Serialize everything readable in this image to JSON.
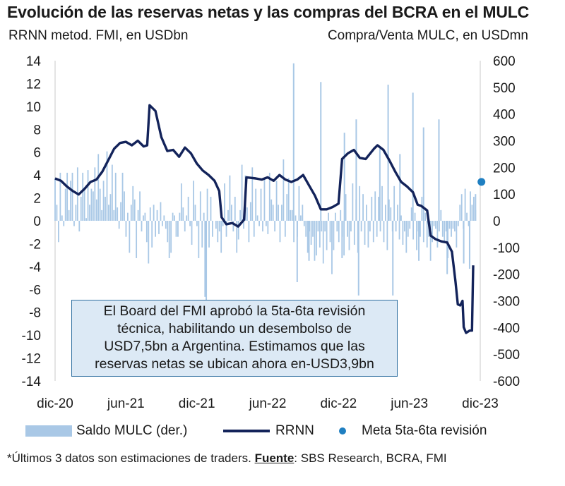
{
  "chart_data": {
    "type": "bar+line",
    "title": "Evolución de las reservas netas y las compras del BCRA en el MULC",
    "left_axis_label": "RRNN metod. FMI, en USDbn",
    "right_axis_label": "Compra/Venta MULC, en USDmn",
    "left_ylim": [
      -14,
      14
    ],
    "right_ylim": [
      -600,
      600
    ],
    "left_ticks": [
      "14",
      "12",
      "10",
      "8",
      "6",
      "4",
      "2",
      "0",
      "-2",
      "-4",
      "-6",
      "-8",
      "-10",
      "-12",
      "-14"
    ],
    "right_ticks": [
      "600",
      "500",
      "400",
      "300",
      "200",
      "100",
      "0",
      "-100",
      "-200",
      "-300",
      "-400",
      "-500",
      "-600"
    ],
    "x_ticks": [
      "dic-20",
      "jun-21",
      "dic-21",
      "jun-22",
      "dic-22",
      "jun-23",
      "dic-23"
    ],
    "x_range_months": [
      0,
      36
    ],
    "series": [
      {
        "name": "RRNN",
        "axis": "left",
        "color": "#13235a",
        "points": [
          [
            0,
            3.7
          ],
          [
            0.5,
            3.5
          ],
          [
            1,
            3.0
          ],
          [
            1.5,
            2.6
          ],
          [
            2,
            2.3
          ],
          [
            2.5,
            2.8
          ],
          [
            3,
            3.4
          ],
          [
            3.5,
            3.6
          ],
          [
            4,
            4.3
          ],
          [
            4.5,
            5.3
          ],
          [
            5,
            6.3
          ],
          [
            5.5,
            6.8
          ],
          [
            6,
            6.9
          ],
          [
            6.5,
            6.6
          ],
          [
            7,
            7.0
          ],
          [
            7.5,
            6.5
          ],
          [
            7.8,
            6.6
          ],
          [
            8,
            10.1
          ],
          [
            8.5,
            9.6
          ],
          [
            9,
            7.3
          ],
          [
            9.5,
            6.1
          ],
          [
            10,
            6.2
          ],
          [
            10.5,
            5.6
          ],
          [
            11,
            6.4
          ],
          [
            11.5,
            5.9
          ],
          [
            12,
            5.0
          ],
          [
            12.5,
            4.4
          ],
          [
            13,
            4.0
          ],
          [
            13.5,
            3.5
          ],
          [
            13.9,
            2.6
          ],
          [
            14.1,
            0.3
          ],
          [
            14.5,
            -0.3
          ],
          [
            15,
            -0.2
          ],
          [
            15.5,
            -0.5
          ],
          [
            16,
            0.1
          ],
          [
            16.2,
            3.8
          ],
          [
            17,
            3.7
          ],
          [
            17.5,
            3.6
          ],
          [
            18,
            3.8
          ],
          [
            18.5,
            3.5
          ],
          [
            19,
            4.0
          ],
          [
            19.5,
            3.6
          ],
          [
            20,
            3.4
          ],
          [
            20.5,
            3.6
          ],
          [
            21,
            4.0
          ],
          [
            21.5,
            3.1
          ],
          [
            22,
            2.2
          ],
          [
            22.5,
            1.0
          ],
          [
            23,
            1.0
          ],
          [
            23.5,
            1.2
          ],
          [
            24,
            1.5
          ],
          [
            24.3,
            5.4
          ],
          [
            24.8,
            5.9
          ],
          [
            25.3,
            6.2
          ],
          [
            25.8,
            5.5
          ],
          [
            26.3,
            5.4
          ],
          [
            27,
            6.3
          ],
          [
            27.3,
            6.6
          ],
          [
            27.8,
            6.2
          ],
          [
            28.3,
            5.3
          ],
          [
            28.8,
            4.3
          ],
          [
            29.3,
            3.4
          ],
          [
            29.8,
            3.0
          ],
          [
            30.3,
            2.5
          ],
          [
            30.7,
            1.4
          ],
          [
            31,
            1.3
          ],
          [
            31.5,
            0.9
          ],
          [
            31.8,
            -1.3
          ],
          [
            32.2,
            -1.6
          ],
          [
            32.7,
            -1.8
          ],
          [
            33.2,
            -1.9
          ],
          [
            33.6,
            -2.7
          ],
          [
            33.9,
            -5.3
          ],
          [
            34.1,
            -7.3
          ],
          [
            34.3,
            -7.4
          ],
          [
            34.5,
            -7.0
          ],
          [
            34.6,
            -9.3
          ],
          [
            34.8,
            -9.8
          ],
          [
            35.1,
            -9.6
          ],
          [
            35.3,
            -9.6
          ],
          [
            35.4,
            -3.9
          ]
        ]
      },
      {
        "name": "Saldo MULC (der.)",
        "axis": "right",
        "color": "#a9c8e6",
        "values": [
          160,
          60,
          -80,
          180,
          20,
          -20,
          120,
          180,
          40,
          150,
          180,
          -20,
          60,
          200,
          -40,
          90,
          180,
          120,
          10,
          190,
          60,
          120,
          110,
          200,
          80,
          250,
          120,
          40,
          150,
          90,
          260,
          60,
          100,
          210,
          40,
          180,
          50,
          -30,
          70,
          180,
          110,
          -60,
          30,
          -120,
          60,
          130,
          80,
          -140,
          40,
          110,
          -40,
          20,
          30,
          -80,
          -160,
          50,
          -100,
          60,
          -60,
          40,
          -50,
          70,
          -20,
          20,
          -30,
          -80,
          -140,
          -120,
          30,
          20,
          -60,
          -60,
          30,
          140,
          50,
          -40,
          20,
          90,
          -20,
          -90,
          150,
          60,
          -20,
          -140,
          110,
          -100,
          30,
          -20,
          120,
          -100,
          90,
          -60,
          0,
          -30,
          -80,
          -40,
          -120,
          -20,
          140,
          -60,
          40,
          170,
          60,
          -40,
          90,
          -120,
          -70,
          40,
          210,
          -30,
          170,
          50,
          -80,
          70,
          200,
          -60,
          120,
          20,
          -20,
          120,
          -40,
          160,
          -20,
          -50,
          180,
          80,
          60,
          -40,
          150,
          60,
          -80,
          60,
          230,
          -60,
          100,
          160,
          40,
          40,
          -80,
          20,
          -60,
          130,
          20,
          60,
          -20,
          -60,
          -120,
          -40,
          -90,
          -60,
          -150,
          -130,
          -40,
          -100,
          -40,
          -160,
          -40,
          -110,
          30,
          -80,
          -200,
          -110,
          30,
          -40,
          -80,
          40,
          -60,
          -130,
          100,
          -60,
          -110,
          -40,
          140,
          -90,
          80,
          -120,
          130,
          -40,
          100,
          -90,
          60,
          -100,
          -40,
          90,
          -80,
          110,
          -60,
          90,
          -40,
          130,
          -80,
          60,
          -110,
          80,
          50,
          -40,
          130,
          -40,
          60,
          -70,
          20,
          -90,
          -40,
          -120,
          -60,
          -30,
          50,
          -70,
          30,
          -110,
          -40,
          -60,
          90,
          -80,
          30,
          -100,
          -60,
          -150,
          -80,
          -20,
          -30,
          -100,
          -40,
          40,
          -60,
          -80,
          -40,
          -140,
          -30,
          -60,
          -30,
          -40,
          -100,
          -20,
          60,
          100,
          -30,
          120,
          30,
          -20,
          110,
          60,
          90,
          40
        ],
        "spikes": [
          [
            12.7,
            -285
          ],
          [
            12.8,
            -300
          ],
          [
            20.2,
            590
          ],
          [
            20.5,
            -230
          ],
          [
            21.5,
            -150
          ],
          [
            22.5,
            520
          ],
          [
            24.3,
            -140
          ],
          [
            24.5,
            330
          ],
          [
            25.5,
            380
          ],
          [
            25.7,
            -280
          ],
          [
            27.5,
            270
          ],
          [
            28.2,
            510
          ],
          [
            28.6,
            -280
          ],
          [
            29.2,
            250
          ],
          [
            30.3,
            480
          ],
          [
            30.8,
            -150
          ],
          [
            31.2,
            350
          ],
          [
            32.5,
            380
          ],
          [
            33.2,
            -200
          ],
          [
            34.6,
            -160
          ],
          [
            35.1,
            -180
          ],
          [
            35.6,
            100
          ]
        ]
      },
      {
        "name": "Meta 5ta-6ta revisión",
        "axis": "left",
        "color": "#1f7fc1",
        "points": [
          [
            36.1,
            3.4
          ]
        ]
      }
    ],
    "annotation": "El Board del FMI aprobó la 5ta-6ta revisión técnica, habilitando un desembolso de USD7,5bn a Argentina. Estimamos que las reservas netas se ubican ahora en-USD3,9bn",
    "legend": [
      "Saldo MULC (der.)",
      "RRNN",
      "Meta 5ta-6ta revisión"
    ]
  },
  "annotation_lines": [
    "El Board del FMI aprobó la 5ta-6ta revisión",
    "técnica, habilitando un desembolso de",
    "USD7,5bn a Argentina. Estimamos que las",
    "reservas netas se ubican ahora en-USD3,9bn"
  ],
  "footnote": {
    "prefix": "*Últimos 3 datos son estimaciones de traders. ",
    "source_label": "Fuente",
    "source_text": ": SBS Research, BCRA, FMI"
  }
}
